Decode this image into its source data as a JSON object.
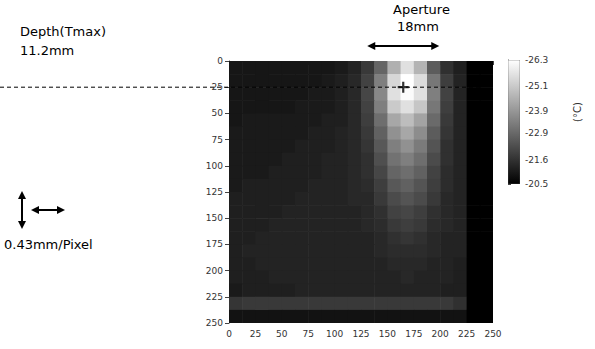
{
  "chart_data": {
    "type": "heatmap",
    "xlim": [
      0,
      250
    ],
    "ylim": [
      0,
      250
    ],
    "xticks": [
      0,
      25,
      50,
      75,
      100,
      125,
      150,
      175,
      200,
      225,
      250
    ],
    "yticks": [
      0,
      25,
      50,
      75,
      100,
      125,
      150,
      175,
      200,
      225,
      250
    ],
    "x": [
      0,
      12.5,
      25,
      37.5,
      50,
      62.5,
      75,
      87.5,
      100,
      112.5,
      125,
      137.5,
      150,
      162.5,
      175,
      187.5,
      200,
      212.5,
      225,
      237.5
    ],
    "y": [
      0,
      12.5,
      25,
      37.5,
      50,
      62.5,
      75,
      87.5,
      100,
      112.5,
      125,
      137.5,
      150,
      162.5,
      175,
      187.5,
      200,
      212.5,
      225,
      237.5
    ],
    "cells": [
      [
        -21.0,
        -21.0,
        -21.0,
        -21.0,
        -21.0,
        -21.0,
        -21.0,
        -21.0,
        -21.1,
        -21.3,
        -21.8,
        -22.8,
        -24.5,
        -25.6,
        -24.6,
        -22.6,
        -21.6,
        -21.2,
        -20.5,
        -20.5
      ],
      [
        -21.0,
        -21.0,
        -21.0,
        -21.0,
        -21.0,
        -21.0,
        -21.0,
        -21.1,
        -21.2,
        -21.4,
        -22.0,
        -23.4,
        -25.4,
        -26.3,
        -25.5,
        -23.2,
        -21.9,
        -21.3,
        -20.5,
        -20.5
      ],
      [
        -21.0,
        -21.0,
        -21.0,
        -21.0,
        -21.0,
        -21.0,
        -21.1,
        -21.1,
        -21.2,
        -21.4,
        -22.1,
        -23.6,
        -25.6,
        -26.2,
        -25.6,
        -23.4,
        -22.0,
        -21.3,
        -20.5,
        -20.5
      ],
      [
        -21.0,
        -21.0,
        -21.0,
        -21.0,
        -21.0,
        -21.1,
        -21.1,
        -21.1,
        -21.2,
        -21.4,
        -22.0,
        -23.4,
        -25.1,
        -25.6,
        -25.0,
        -23.2,
        -21.9,
        -21.3,
        -20.5,
        -20.5
      ],
      [
        -21.0,
        -21.1,
        -21.1,
        -21.1,
        -21.1,
        -21.1,
        -21.1,
        -21.2,
        -21.2,
        -21.4,
        -21.9,
        -23.0,
        -24.3,
        -24.8,
        -24.2,
        -22.9,
        -21.8,
        -21.3,
        -20.5,
        -20.5
      ],
      [
        -21.1,
        -21.1,
        -21.1,
        -21.1,
        -21.1,
        -21.1,
        -21.2,
        -21.2,
        -21.3,
        -21.4,
        -21.8,
        -22.7,
        -23.8,
        -24.3,
        -23.7,
        -22.6,
        -21.7,
        -21.3,
        -20.5,
        -20.5
      ],
      [
        -21.1,
        -21.1,
        -21.1,
        -21.1,
        -21.1,
        -21.2,
        -21.2,
        -21.2,
        -21.3,
        -21.4,
        -21.7,
        -22.5,
        -23.4,
        -23.8,
        -23.3,
        -22.4,
        -21.6,
        -21.3,
        -20.5,
        -20.5
      ],
      [
        -21.1,
        -21.1,
        -21.1,
        -21.1,
        -21.2,
        -21.2,
        -21.2,
        -21.3,
        -21.3,
        -21.4,
        -21.6,
        -22.3,
        -23.1,
        -23.4,
        -23.0,
        -22.2,
        -21.6,
        -21.3,
        -20.5,
        -20.5
      ],
      [
        -21.1,
        -21.1,
        -21.1,
        -21.2,
        -21.2,
        -21.2,
        -21.2,
        -21.3,
        -21.3,
        -21.4,
        -21.6,
        -22.1,
        -22.8,
        -23.0,
        -22.7,
        -22.0,
        -21.5,
        -21.3,
        -20.5,
        -20.5
      ],
      [
        -21.1,
        -21.2,
        -21.2,
        -21.2,
        -21.2,
        -21.2,
        -21.3,
        -21.3,
        -21.3,
        -21.4,
        -21.5,
        -21.9,
        -22.5,
        -22.7,
        -22.4,
        -21.9,
        -21.5,
        -21.3,
        -20.5,
        -20.5
      ],
      [
        -21.2,
        -21.2,
        -21.2,
        -21.2,
        -21.2,
        -21.3,
        -21.3,
        -21.3,
        -21.3,
        -21.4,
        -21.4,
        -21.8,
        -22.2,
        -22.4,
        -22.2,
        -21.8,
        -21.4,
        -21.3,
        -20.5,
        -20.5
      ],
      [
        -21.2,
        -21.2,
        -21.2,
        -21.2,
        -21.3,
        -21.3,
        -21.3,
        -21.3,
        -21.3,
        -21.3,
        -21.4,
        -21.6,
        -22.0,
        -22.1,
        -21.9,
        -21.6,
        -21.4,
        -21.3,
        -20.5,
        -20.5
      ],
      [
        -21.2,
        -21.2,
        -21.2,
        -21.3,
        -21.3,
        -21.3,
        -21.3,
        -21.3,
        -21.3,
        -21.3,
        -21.4,
        -21.5,
        -21.8,
        -21.9,
        -21.8,
        -21.5,
        -21.4,
        -21.3,
        -20.5,
        -20.5
      ],
      [
        -21.2,
        -21.2,
        -21.3,
        -21.3,
        -21.3,
        -21.3,
        -21.3,
        -21.3,
        -21.3,
        -21.3,
        -21.3,
        -21.4,
        -21.6,
        -21.7,
        -21.6,
        -21.4,
        -21.3,
        -21.3,
        -20.5,
        -20.5
      ],
      [
        -21.2,
        -21.3,
        -21.3,
        -21.3,
        -21.3,
        -21.3,
        -21.3,
        -21.3,
        -21.3,
        -21.3,
        -21.3,
        -21.4,
        -21.5,
        -21.5,
        -21.5,
        -21.4,
        -21.3,
        -21.3,
        -20.5,
        -20.5
      ],
      [
        -21.2,
        -21.2,
        -21.3,
        -21.3,
        -21.3,
        -21.3,
        -21.3,
        -21.3,
        -21.3,
        -21.3,
        -21.3,
        -21.3,
        -21.4,
        -21.4,
        -21.4,
        -21.3,
        -21.3,
        -21.2,
        -20.5,
        -20.5
      ],
      [
        -21.2,
        -21.2,
        -21.2,
        -21.3,
        -21.3,
        -21.3,
        -21.3,
        -21.3,
        -21.3,
        -21.3,
        -21.3,
        -21.3,
        -21.3,
        -21.4,
        -21.3,
        -21.3,
        -21.3,
        -21.2,
        -20.5,
        -20.5
      ],
      [
        -21.1,
        -21.2,
        -21.2,
        -21.2,
        -21.2,
        -21.3,
        -21.3,
        -21.3,
        -21.3,
        -21.3,
        -21.3,
        -21.3,
        -21.3,
        -21.3,
        -21.3,
        -21.3,
        -21.2,
        -21.2,
        -20.5,
        -20.5
      ],
      [
        -21.7,
        -21.8,
        -21.8,
        -21.8,
        -21.8,
        -21.8,
        -21.8,
        -21.8,
        -21.8,
        -21.8,
        -21.8,
        -21.8,
        -21.8,
        -21.8,
        -21.8,
        -21.8,
        -21.8,
        -21.6,
        -20.5,
        -20.5
      ],
      [
        -20.9,
        -20.9,
        -20.9,
        -20.9,
        -20.9,
        -20.9,
        -20.9,
        -20.9,
        -20.9,
        -20.9,
        -20.9,
        -20.9,
        -20.9,
        -20.9,
        -20.9,
        -20.9,
        -20.9,
        -20.9,
        -20.5,
        -20.5
      ]
    ],
    "colorbar_range": [
      -26.3,
      -20.5
    ],
    "colorbar_ticks": [
      -26.3,
      -25.1,
      -23.9,
      -22.9,
      -21.6,
      -20.5
    ],
    "colorbar_label": "(°C)",
    "tmax_point": [
      165,
      25
    ],
    "annotations": [
      "Aperture",
      "18mm",
      "Depth(Tmax)",
      "11.2mm",
      "0.43mm/Pixel"
    ]
  }
}
